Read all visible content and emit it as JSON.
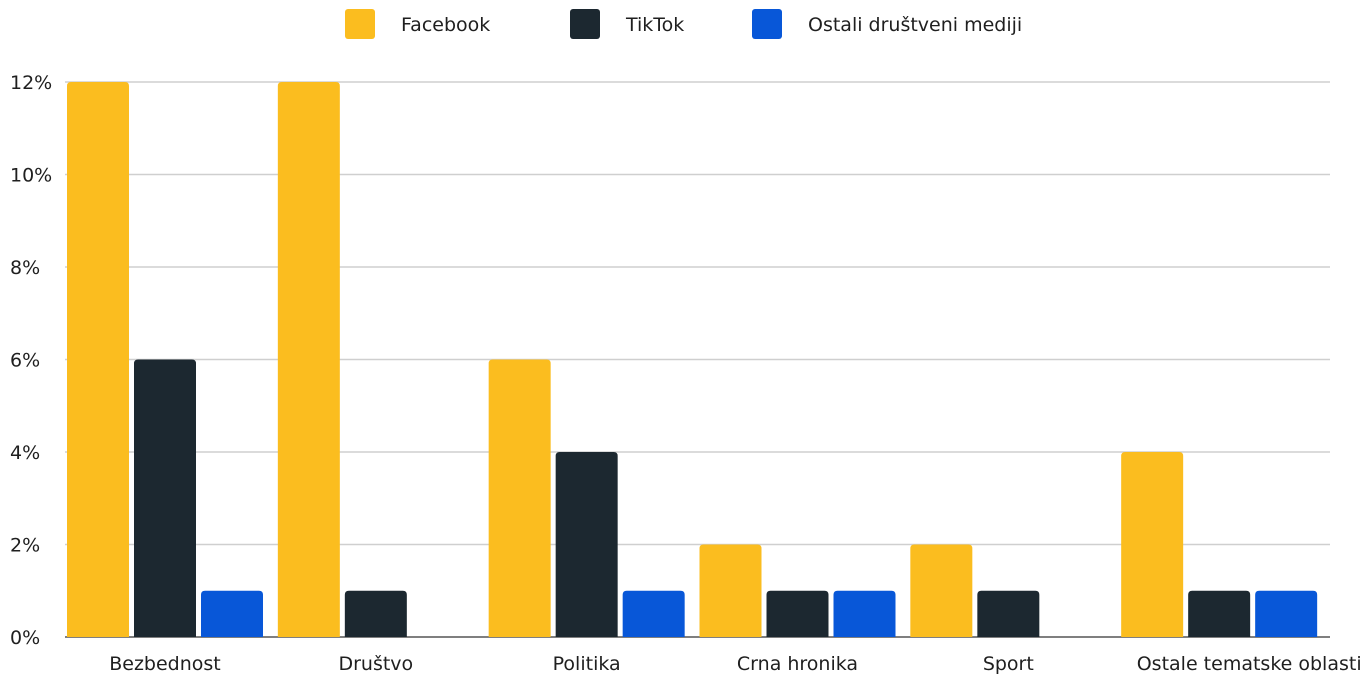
{
  "chart_data": {
    "type": "bar",
    "categories": [
      "Bezbednost",
      "Društvo",
      "Politika",
      "Crna hronika",
      "Sport",
      "Ostale tematske oblasti"
    ],
    "series": [
      {
        "name": "Facebook",
        "color": "#fbbd1f",
        "values": [
          12,
          12,
          6,
          2,
          2,
          4
        ]
      },
      {
        "name": "TikTok",
        "color": "#1c2830",
        "values": [
          6,
          1,
          4,
          1,
          1,
          1
        ]
      },
      {
        "name": "Ostali društveni mediji",
        "color": "#0857d8",
        "values": [
          1,
          0,
          1,
          1,
          0,
          1
        ]
      }
    ],
    "y_ticks": [
      "0%",
      "2%",
      "4%",
      "6%",
      "8%",
      "10%",
      "12%"
    ],
    "y_tick_values": [
      0,
      2,
      4,
      6,
      8,
      10,
      12
    ],
    "ylim": [
      0,
      12
    ],
    "grid": true,
    "legend_position": "top-center"
  }
}
